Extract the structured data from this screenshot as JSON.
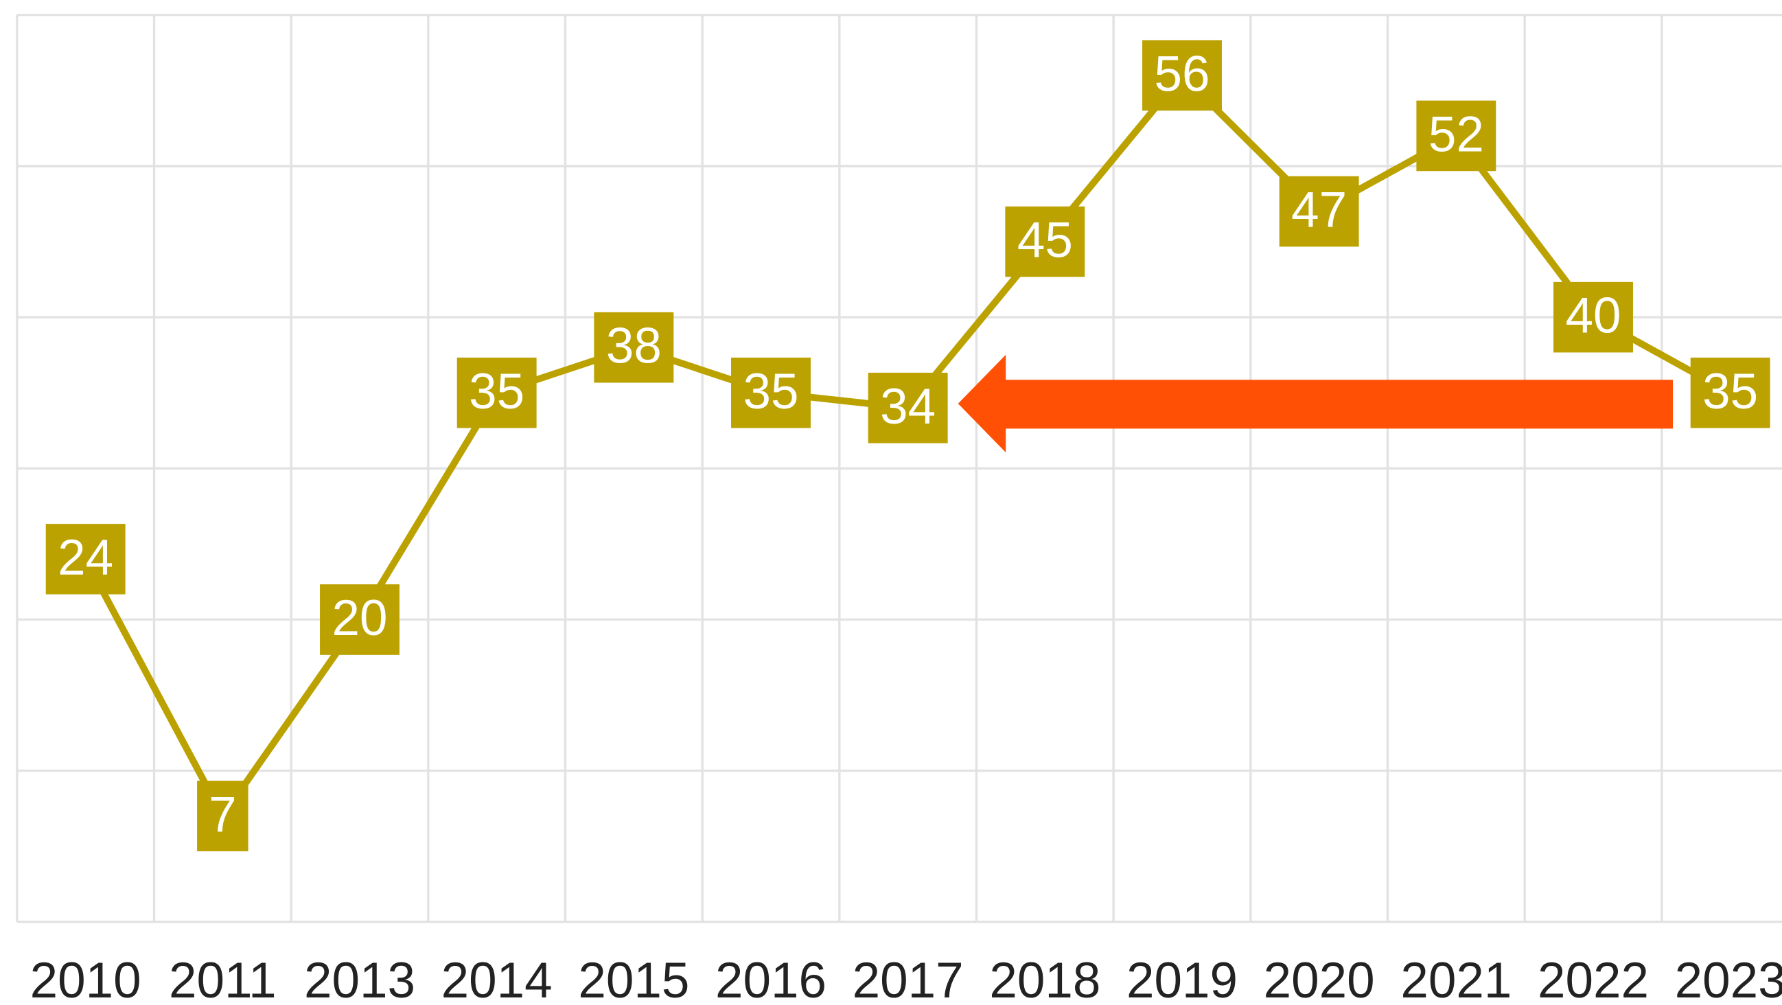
{
  "chart_data": {
    "type": "line",
    "categories": [
      "2010",
      "2011",
      "2013",
      "2014",
      "2015",
      "2016",
      "2017",
      "2018",
      "2019",
      "2020",
      "2021",
      "2022",
      "2023"
    ],
    "values": [
      24,
      7,
      20,
      35,
      38,
      35,
      34,
      45,
      56,
      47,
      52,
      40,
      35
    ],
    "color": "#bba200",
    "ylim": [
      0,
      60
    ],
    "yticks": [
      0,
      10,
      20,
      30,
      40,
      50,
      60
    ],
    "grid": true
  }
}
